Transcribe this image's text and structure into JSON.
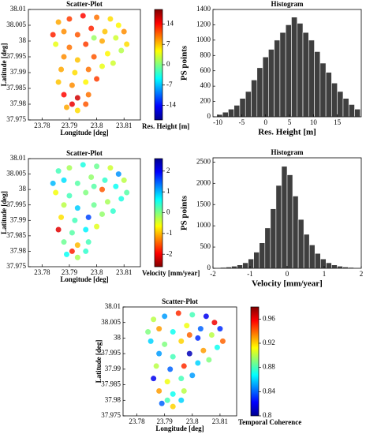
{
  "chart_data": [
    {
      "type": "scatter",
      "title": "Scatter-Plot",
      "xlabel": "Longitude [deg]",
      "ylabel": "Latitude [deg]",
      "colorbar_label": "Res. Height [m]",
      "colormap": "jet",
      "xlim": [
        23.775,
        23.816
      ],
      "xticks": [
        23.78,
        23.79,
        23.8,
        23.81
      ],
      "ylim": [
        37.975,
        38.01
      ],
      "yticks": [
        37.975,
        37.98,
        37.985,
        37.99,
        37.995,
        38,
        38.005,
        38.01
      ],
      "clim": [
        -19,
        19
      ],
      "cticks": [
        -14,
        -7,
        0,
        7,
        14
      ],
      "x": [
        23.786,
        23.79,
        23.795,
        23.8,
        23.805,
        23.788,
        23.793,
        23.798,
        23.803,
        23.808,
        23.785,
        23.79,
        23.796,
        23.802,
        23.807,
        23.811,
        23.788,
        23.793,
        23.799,
        23.804,
        23.809,
        23.787,
        23.792,
        23.797,
        23.802,
        23.806,
        23.786,
        23.791,
        23.796,
        23.8,
        23.788,
        23.793,
        23.797,
        23.789,
        23.793,
        23.796,
        23.784,
        23.81,
        23.799,
        23.791
      ],
      "y": [
        38.006,
        38.007,
        38.008,
        38.0075,
        38.007,
        38.003,
        38.002,
        38.004,
        38.003,
        38.005,
        37.999,
        37.998,
        37.999,
        38,
        38.001,
        37.999,
        37.995,
        37.994,
        37.995,
        37.996,
        37.997,
        37.991,
        37.99,
        37.991,
        37.992,
        37.993,
        37.987,
        37.986,
        37.987,
        37.988,
        37.983,
        37.982,
        37.983,
        37.979,
        37.978,
        37.98,
        38.002,
        38.003,
        38.001,
        37.98
      ],
      "values": [
        8,
        12,
        14,
        10,
        6,
        9,
        11,
        13,
        7,
        5,
        4,
        10,
        12,
        8,
        3,
        6,
        9,
        7,
        11,
        5,
        2,
        8,
        6,
        10,
        4,
        3,
        7,
        9,
        5,
        12,
        14,
        16,
        10,
        8,
        6,
        11,
        13,
        9,
        1,
        15
      ]
    },
    {
      "type": "histogram",
      "title": "Histogram",
      "xlabel": "Res. Height [m]",
      "ylabel": "PS points",
      "color": "#3f3f3f",
      "xlim": [
        -11,
        20
      ],
      "xticks": [
        -10,
        -5,
        0,
        5,
        10,
        15
      ],
      "ylim": [
        0,
        1400
      ],
      "yticks": [
        0,
        200,
        400,
        600,
        800,
        1000,
        1200,
        1400
      ],
      "bins": [
        -10.2,
        -9,
        -7.8,
        -6.6,
        -5.4,
        -4.2,
        -3,
        -1.8,
        -0.6,
        0.6,
        1.8,
        3,
        4.2,
        5.4,
        6.6,
        7.8,
        9,
        10.2,
        11.4,
        12.6,
        13.8,
        15,
        16.2,
        17.4,
        18.6,
        19.8
      ],
      "values": [
        30,
        60,
        100,
        150,
        240,
        330,
        480,
        640,
        780,
        880,
        1000,
        1100,
        1200,
        1300,
        1220,
        1100,
        1000,
        850,
        700,
        580,
        440,
        330,
        240,
        160,
        100
      ]
    },
    {
      "type": "scatter",
      "title": "Scatter-Plot",
      "xlabel": "Longitude [deg]",
      "ylabel": "Latitude [deg]",
      "colorbar_label": "Velocity [mm/year]",
      "colormap": "jet_r",
      "xlim": [
        23.775,
        23.816
      ],
      "xticks": [
        23.78,
        23.79,
        23.8,
        23.81
      ],
      "ylim": [
        37.975,
        38.01
      ],
      "yticks": [
        37.975,
        37.98,
        37.985,
        37.99,
        37.995,
        38,
        38.005,
        38.01
      ],
      "clim": [
        -2.6,
        2.6
      ],
      "cticks": [
        -2,
        -1,
        0,
        1,
        2
      ],
      "x": [
        23.786,
        23.79,
        23.795,
        23.8,
        23.805,
        23.788,
        23.793,
        23.798,
        23.803,
        23.808,
        23.785,
        23.79,
        23.796,
        23.802,
        23.807,
        23.811,
        23.788,
        23.793,
        23.799,
        23.804,
        23.809,
        23.787,
        23.792,
        23.797,
        23.802,
        23.806,
        23.786,
        23.791,
        23.796,
        23.8,
        23.788,
        23.793,
        23.797,
        23.789,
        23.793,
        23.796,
        23.784,
        23.81,
        23.799,
        23.791
      ],
      "y": [
        38.006,
        38.007,
        38.008,
        38.0075,
        38.007,
        38.003,
        38.002,
        38.004,
        38.003,
        38.005,
        37.999,
        37.998,
        37.999,
        38,
        38.001,
        37.999,
        37.995,
        37.994,
        37.995,
        37.996,
        37.997,
        37.991,
        37.99,
        37.991,
        37.992,
        37.993,
        37.987,
        37.986,
        37.987,
        37.988,
        37.983,
        37.982,
        37.983,
        37.979,
        37.978,
        37.98,
        38.002,
        38.003,
        38.001,
        37.98
      ],
      "values": [
        0.3,
        -0.2,
        0.5,
        0.1,
        -0.4,
        0.8,
        0.2,
        -0.1,
        0.4,
        1.2,
        -0.6,
        0.3,
        0,
        -1.5,
        0.6,
        0.2,
        -0.3,
        0.9,
        0.1,
        -0.2,
        0.5,
        -0.8,
        0.3,
        1.6,
        -0.1,
        0.4,
        -2.1,
        0.2,
        0.7,
        -0.5,
        0.1,
        -1,
        0.3,
        0.6,
        -0.2,
        0.4,
        1,
        -0.3,
        0.2,
        -1.8
      ]
    },
    {
      "type": "histogram",
      "title": "Histogram",
      "xlabel": "Velocity [mm/year]",
      "ylabel": "PS points",
      "color": "#3f3f3f",
      "xlim": [
        -2,
        2
      ],
      "xticks": [
        -2,
        -1,
        0,
        1,
        2
      ],
      "ylim": [
        0,
        2600
      ],
      "yticks": [
        0,
        500,
        1000,
        1500,
        2000,
        2500
      ],
      "bins": [
        -1.95,
        -1.8,
        -1.65,
        -1.5,
        -1.35,
        -1.2,
        -1.05,
        -0.9,
        -0.75,
        -0.6,
        -0.45,
        -0.3,
        -0.15,
        0,
        0.15,
        0.3,
        0.45,
        0.6,
        0.75,
        0.9,
        1.05,
        1.2,
        1.35,
        1.5,
        1.65,
        1.8,
        1.95
      ],
      "values": [
        10,
        20,
        30,
        50,
        80,
        130,
        220,
        380,
        600,
        950,
        1400,
        1950,
        2400,
        2200,
        1700,
        1150,
        800,
        550,
        350,
        220,
        130,
        80,
        50,
        30,
        20,
        10
      ]
    },
    {
      "type": "scatter",
      "title": "Scatter-Plot",
      "xlabel": "Longitude [deg]",
      "ylabel": "Latitude [deg]",
      "colorbar_label": "Temporal Coherence",
      "colormap": "jet",
      "xlim": [
        23.775,
        23.816
      ],
      "xticks": [
        23.78,
        23.79,
        23.8,
        23.81
      ],
      "ylim": [
        37.975,
        38.01
      ],
      "yticks": [
        37.975,
        37.98,
        37.985,
        37.99,
        37.995,
        38,
        38.005,
        38.01
      ],
      "clim": [
        0.8,
        0.98
      ],
      "cticks": [
        0.8,
        0.84,
        0.88,
        0.92,
        0.96
      ],
      "x": [
        23.786,
        23.79,
        23.795,
        23.8,
        23.805,
        23.788,
        23.793,
        23.798,
        23.803,
        23.808,
        23.785,
        23.79,
        23.796,
        23.802,
        23.807,
        23.811,
        23.788,
        23.793,
        23.799,
        23.804,
        23.809,
        23.787,
        23.792,
        23.797,
        23.802,
        23.806,
        23.786,
        23.791,
        23.796,
        23.8,
        23.788,
        23.793,
        23.797,
        23.789,
        23.793,
        23.796,
        23.784,
        23.81,
        23.799,
        23.791
      ],
      "y": [
        38.006,
        38.007,
        38.008,
        38.0075,
        38.007,
        38.003,
        38.002,
        38.004,
        38.003,
        38.005,
        37.999,
        37.998,
        37.999,
        38,
        38.001,
        37.999,
        37.995,
        37.994,
        37.995,
        37.996,
        37.997,
        37.991,
        37.99,
        37.991,
        37.992,
        37.993,
        37.987,
        37.986,
        37.987,
        37.988,
        37.983,
        37.982,
        37.983,
        37.979,
        37.978,
        37.98,
        38.002,
        38.003,
        38.001,
        37.98
      ],
      "values": [
        0.9,
        0.85,
        0.95,
        0.88,
        0.82,
        0.93,
        0.87,
        0.91,
        0.84,
        0.96,
        0.86,
        0.89,
        0.92,
        0.83,
        0.9,
        0.94,
        0.85,
        0.88,
        0.81,
        0.93,
        0.87,
        0.9,
        0.84,
        0.95,
        0.86,
        0.89,
        0.82,
        0.91,
        0.88,
        0.85,
        0.93,
        0.87,
        0.9,
        0.84,
        0.92,
        0.86,
        0.89,
        0.83,
        0.94,
        0.88
      ]
    }
  ]
}
